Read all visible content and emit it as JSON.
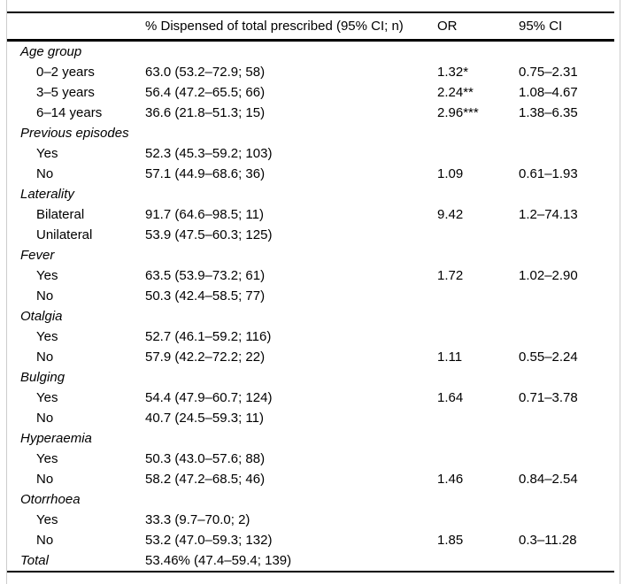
{
  "table": {
    "columns": [
      "",
      "% Dispensed of total prescribed (95% CI; n)",
      "OR",
      "95% CI"
    ],
    "sections": [
      {
        "label": "Age group",
        "rows": [
          {
            "label": "0–2 years",
            "dispensed": "63.0 (53.2–72.9; 58)",
            "or": "1.32*",
            "ci": "0.75–2.31"
          },
          {
            "label": "3–5 years",
            "dispensed": "56.4 (47.2–65.5; 66)",
            "or": "2.24**",
            "ci": "1.08–4.67"
          },
          {
            "label": "6–14 years",
            "dispensed": "36.6 (21.8–51.3; 15)",
            "or": "2.96***",
            "ci": "1.38–6.35"
          }
        ]
      },
      {
        "label": "Previous episodes",
        "rows": [
          {
            "label": "Yes",
            "dispensed": "52.3 (45.3–59.2; 103)",
            "or": "",
            "ci": ""
          },
          {
            "label": "No",
            "dispensed": "57.1 (44.9–68.6; 36)",
            "or": "1.09",
            "ci": "0.61–1.93"
          }
        ]
      },
      {
        "label": "Laterality",
        "rows": [
          {
            "label": "Bilateral",
            "dispensed": "91.7 (64.6–98.5; 11)",
            "or": "9.42",
            "ci": "1.2–74.13"
          },
          {
            "label": "Unilateral",
            "dispensed": "53.9 (47.5–60.3; 125)",
            "or": "",
            "ci": ""
          }
        ]
      },
      {
        "label": "Fever",
        "rows": [
          {
            "label": "Yes",
            "dispensed": "63.5 (53.9–73.2; 61)",
            "or": "1.72",
            "ci": "1.02–2.90"
          },
          {
            "label": "No",
            "dispensed": "50.3 (42.4–58.5; 77)",
            "or": "",
            "ci": ""
          }
        ]
      },
      {
        "label": "Otalgia",
        "rows": [
          {
            "label": "Yes",
            "dispensed": "52.7 (46.1–59.2; 116)",
            "or": "",
            "ci": ""
          },
          {
            "label": "No",
            "dispensed": "57.9 (42.2–72.2; 22)",
            "or": "1.11",
            "ci": "0.55–2.24"
          }
        ]
      },
      {
        "label": "Bulging",
        "rows": [
          {
            "label": "Yes",
            "dispensed": "54.4 (47.9–60.7; 124)",
            "or": "1.64",
            "ci": "0.71–3.78"
          },
          {
            "label": "No",
            "dispensed": "40.7 (24.5–59.3; 11)",
            "or": "",
            "ci": ""
          }
        ]
      },
      {
        "label": "Hyperaemia",
        "rows": [
          {
            "label": "Yes",
            "dispensed": "50.3 (43.0–57.6; 88)",
            "or": "",
            "ci": ""
          },
          {
            "label": "No",
            "dispensed": "58.2 (47.2–68.5; 46)",
            "or": "1.46",
            "ci": "0.84–2.54"
          }
        ]
      },
      {
        "label": "Otorrhoea",
        "rows": [
          {
            "label": "Yes",
            "dispensed": "33.3 (9.7–70.0; 2)",
            "or": "",
            "ci": ""
          },
          {
            "label": "No",
            "dispensed": "53.2 (47.0–59.3; 132)",
            "or": "1.85",
            "ci": "0.3–11.28"
          }
        ]
      }
    ],
    "total_row": {
      "label": "Total",
      "dispensed": "53.46% (47.4–59.4; 139)",
      "or": "",
      "ci": ""
    }
  }
}
